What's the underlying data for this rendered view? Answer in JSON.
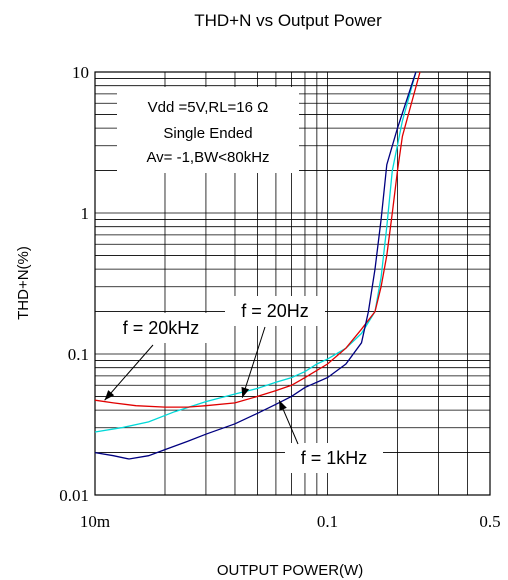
{
  "chart_data": {
    "type": "line",
    "title": "THD+N vs Output Power",
    "xlabel": "OUTPUT POWER(W)",
    "ylabel": "THD+N(%)",
    "x_scale": "log",
    "y_scale": "log",
    "xlim": [
      0.01,
      0.5
    ],
    "ylim": [
      0.01,
      10
    ],
    "grid": true,
    "x_tick_labels": [
      {
        "value": 0.01,
        "label": "10m"
      },
      {
        "value": 0.1,
        "label": "0.1"
      },
      {
        "value": 0.5,
        "label": "0.5"
      }
    ],
    "y_tick_labels": [
      {
        "value": 0.01,
        "label": "0.01"
      },
      {
        "value": 0.1,
        "label": "0.1"
      },
      {
        "value": 1,
        "label": "1"
      },
      {
        "value": 10,
        "label": "10"
      }
    ],
    "conditions": [
      "Vdd =5V,RL=16 Ω",
      "Single Ended",
      "Av= -1,BW<80kHz"
    ],
    "series": [
      {
        "name": "f = 20kHz",
        "color": "#00d8d8",
        "points": [
          [
            0.01,
            0.028
          ],
          [
            0.013,
            0.03
          ],
          [
            0.017,
            0.033
          ],
          [
            0.022,
            0.039
          ],
          [
            0.03,
            0.046
          ],
          [
            0.04,
            0.052
          ],
          [
            0.05,
            0.057
          ],
          [
            0.06,
            0.063
          ],
          [
            0.07,
            0.068
          ],
          [
            0.08,
            0.075
          ],
          [
            0.09,
            0.085
          ],
          [
            0.1,
            0.092
          ],
          [
            0.12,
            0.11
          ],
          [
            0.14,
            0.14
          ],
          [
            0.16,
            0.2
          ],
          [
            0.17,
            0.35
          ],
          [
            0.18,
            0.8
          ],
          [
            0.19,
            2.0
          ],
          [
            0.21,
            4.5
          ],
          [
            0.24,
            10
          ]
        ]
      },
      {
        "name": "f = 20Hz",
        "color": "#e00000",
        "points": [
          [
            0.01,
            0.047
          ],
          [
            0.012,
            0.045
          ],
          [
            0.015,
            0.043
          ],
          [
            0.02,
            0.042
          ],
          [
            0.025,
            0.042
          ],
          [
            0.03,
            0.043
          ],
          [
            0.04,
            0.045
          ],
          [
            0.05,
            0.05
          ],
          [
            0.06,
            0.055
          ],
          [
            0.07,
            0.06
          ],
          [
            0.08,
            0.068
          ],
          [
            0.1,
            0.085
          ],
          [
            0.12,
            0.11
          ],
          [
            0.14,
            0.15
          ],
          [
            0.16,
            0.2
          ],
          [
            0.17,
            0.3
          ],
          [
            0.18,
            0.5
          ],
          [
            0.19,
            1.0
          ],
          [
            0.2,
            2.0
          ],
          [
            0.21,
            3.5
          ],
          [
            0.25,
            10
          ]
        ]
      },
      {
        "name": "f = 1kHz",
        "color": "#000080",
        "points": [
          [
            0.01,
            0.02
          ],
          [
            0.012,
            0.019
          ],
          [
            0.014,
            0.018
          ],
          [
            0.017,
            0.019
          ],
          [
            0.02,
            0.021
          ],
          [
            0.025,
            0.024
          ],
          [
            0.03,
            0.027
          ],
          [
            0.04,
            0.032
          ],
          [
            0.05,
            0.038
          ],
          [
            0.06,
            0.044
          ],
          [
            0.07,
            0.05
          ],
          [
            0.08,
            0.058
          ],
          [
            0.1,
            0.068
          ],
          [
            0.12,
            0.085
          ],
          [
            0.14,
            0.12
          ],
          [
            0.15,
            0.2
          ],
          [
            0.16,
            0.4
          ],
          [
            0.17,
            0.9
          ],
          [
            0.18,
            2.2
          ],
          [
            0.2,
            4.0
          ],
          [
            0.24,
            10
          ]
        ]
      }
    ],
    "annotations": [
      {
        "text": "f = 20kHz",
        "target": [
          0.011,
          0.047
        ]
      },
      {
        "text": "f = 20Hz",
        "target": [
          0.043,
          0.049
        ]
      },
      {
        "text": "f = 1kHz",
        "target": [
          0.062,
          0.047
        ]
      }
    ]
  }
}
